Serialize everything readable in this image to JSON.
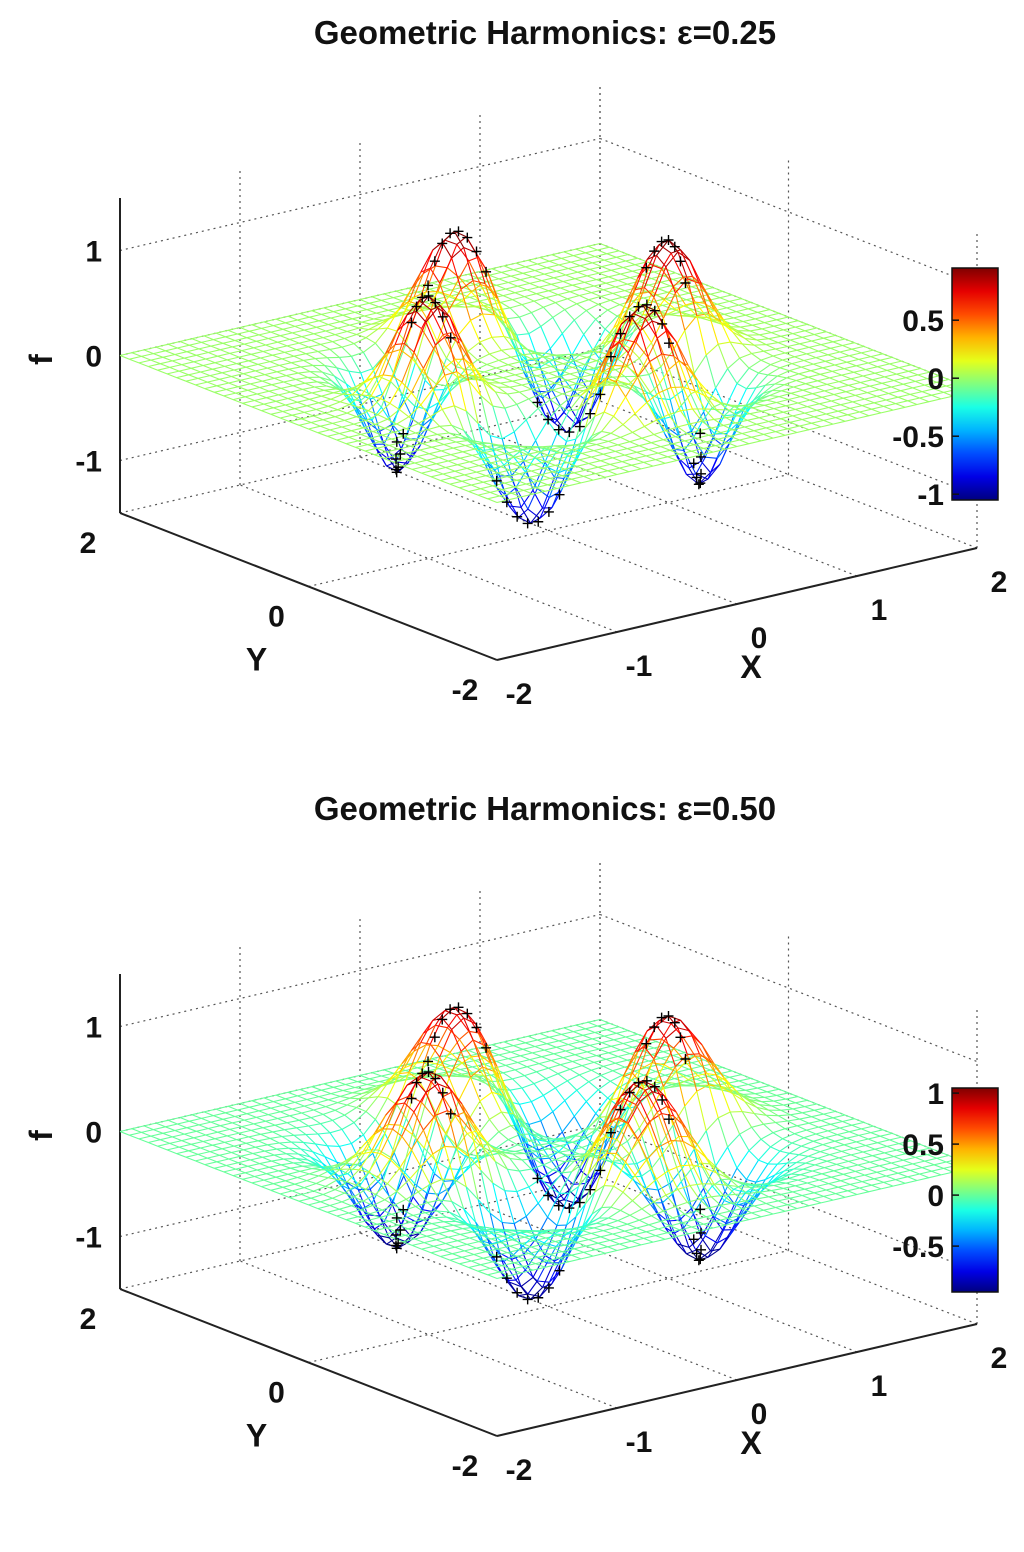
{
  "chart_data": [
    {
      "type": "surface3d",
      "title": "Geometric Harmonics: ε=0.25",
      "xlabel": "X",
      "ylabel": "Y",
      "zlabel": "f",
      "x_ticks": [
        "-2",
        "-1",
        "0",
        "1",
        "2"
      ],
      "y_ticks": [
        "-2",
        "0",
        "2"
      ],
      "z_ticks": [
        "-1",
        "0",
        "1"
      ],
      "xlim": [
        -2,
        2
      ],
      "ylim": [
        -2,
        2
      ],
      "zlim": [
        -1.5,
        1.5
      ],
      "grid": true,
      "colormap": "jet",
      "colorbar": {
        "ticks": [
          "-1",
          "-0.5",
          "0",
          "0.5"
        ],
        "tick_values": [
          -1,
          -0.5,
          0,
          0.5
        ],
        "range": [
          -1.05,
          0.95
        ]
      },
      "surface": {
        "function": "ring-wave",
        "ring_radius": 1.0,
        "peak_value": 1.0,
        "trough_value": -1.0,
        "falloff": 0.25,
        "lobes": 4
      },
      "markers": {
        "symbol": "+",
        "color": "#000000"
      }
    },
    {
      "type": "surface3d",
      "title": "Geometric Harmonics: ε=0.50",
      "xlabel": "X",
      "ylabel": "Y",
      "zlabel": "f",
      "x_ticks": [
        "-2",
        "-1",
        "0",
        "1",
        "2"
      ],
      "y_ticks": [
        "-2",
        "0",
        "2"
      ],
      "z_ticks": [
        "-1",
        "0",
        "1"
      ],
      "xlim": [
        -2,
        2
      ],
      "ylim": [
        -2,
        2
      ],
      "zlim": [
        -1.5,
        1.5
      ],
      "grid": true,
      "colormap": "jet",
      "colorbar": {
        "ticks": [
          "-0.5",
          "0",
          "0.5",
          "1"
        ],
        "tick_values": [
          -0.5,
          0,
          0.5,
          1
        ],
        "range": [
          -0.95,
          1.05
        ]
      },
      "surface": {
        "function": "ring-wave",
        "ring_radius": 1.0,
        "peak_value": 1.0,
        "trough_value": -1.0,
        "falloff": 0.5,
        "lobes": 4
      },
      "markers": {
        "symbol": "+",
        "color": "#000000"
      }
    }
  ]
}
